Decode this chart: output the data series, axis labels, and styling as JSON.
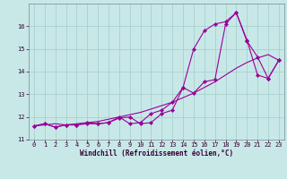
{
  "xlabel": "Windchill (Refroidissement éolien,°C)",
  "background_color": "#c8e8e8",
  "grid_color": "#a8d0d0",
  "line_color": "#990099",
  "x": [
    0,
    1,
    2,
    3,
    4,
    5,
    6,
    7,
    8,
    9,
    10,
    11,
    12,
    13,
    14,
    15,
    16,
    17,
    18,
    19,
    20,
    21,
    22,
    23
  ],
  "line1_y": [
    11.6,
    11.7,
    11.55,
    11.65,
    11.65,
    11.7,
    11.7,
    11.75,
    11.95,
    12.0,
    11.7,
    11.75,
    12.15,
    12.3,
    13.3,
    13.05,
    13.55,
    13.65,
    16.1,
    16.6,
    15.4,
    13.85,
    13.7,
    14.5
  ],
  "line2_y": [
    11.6,
    11.7,
    11.55,
    11.65,
    11.65,
    11.75,
    11.7,
    11.75,
    12.0,
    11.7,
    11.75,
    12.15,
    12.3,
    12.65,
    13.3,
    15.0,
    15.8,
    16.1,
    16.2,
    16.6,
    15.35,
    14.65,
    13.7,
    14.5
  ],
  "line3_y": [
    11.6,
    11.65,
    11.7,
    11.65,
    11.7,
    11.75,
    11.8,
    11.9,
    12.0,
    12.1,
    12.2,
    12.35,
    12.5,
    12.65,
    12.85,
    13.05,
    13.3,
    13.55,
    13.85,
    14.15,
    14.4,
    14.6,
    14.75,
    14.5
  ],
  "ylim": [
    11.0,
    17.0
  ],
  "yticks": [
    11,
    12,
    13,
    14,
    15,
    16
  ],
  "xticks": [
    0,
    1,
    2,
    3,
    4,
    5,
    6,
    7,
    8,
    9,
    10,
    11,
    12,
    13,
    14,
    15,
    16,
    17,
    18,
    19,
    20,
    21,
    22,
    23
  ],
  "xlabel_fontsize": 5.5,
  "tick_fontsize": 5.0
}
